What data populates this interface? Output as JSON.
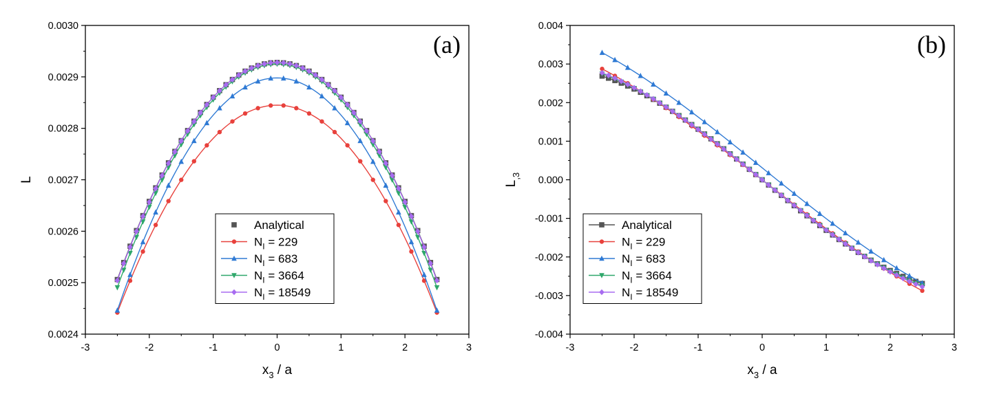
{
  "chart_data": [
    {
      "type": "line",
      "panel_label": "(a)",
      "xlabel": "x",
      "xlabel_sub": "3",
      "xlabel_suffix": " / a",
      "ylabel": "L",
      "ylabel_sub": "",
      "xlim": [
        -3,
        3
      ],
      "ylim": [
        0.0024,
        0.003
      ],
      "xticks": [
        "-3",
        "-2",
        "-1",
        "0",
        "1",
        "2",
        "3"
      ],
      "yticks": [
        "0.0024",
        "0.0025",
        "0.0026",
        "0.0027",
        "0.0028",
        "0.0029",
        "0.0030"
      ],
      "legend_position": "bottom-center",
      "series": [
        {
          "name": "Analytical",
          "kind": "analytical",
          "color": "#555555",
          "marker": "square",
          "curve": {
            "type": "quadratic",
            "a": 0.002928,
            "b": 0.0,
            "c": -6.75e-05
          },
          "x_start": -2.5,
          "x_end": 2.5,
          "step": 0.1
        },
        {
          "name": "229",
          "kind": "numeric",
          "color": "#e8413c",
          "marker": "circle",
          "curve": {
            "type": "quadratic",
            "a": 0.002845,
            "b": 0.0,
            "c": -6.45e-05
          },
          "x_start": -2.5,
          "x_end": 2.5,
          "step": 0.2
        },
        {
          "name": "683",
          "kind": "numeric",
          "color": "#2f7ad4",
          "marker": "triangle-up",
          "curve": {
            "type": "quadratic",
            "a": 0.002898,
            "b": 0.0,
            "c": -7.23e-05
          },
          "x_start": -2.5,
          "x_end": 2.5,
          "step": 0.2
        },
        {
          "name": "3664",
          "kind": "numeric",
          "color": "#2ea76a",
          "marker": "triangle-down",
          "curve": {
            "type": "quadratic",
            "a": 0.002925,
            "b": 0.0,
            "c": -6.95e-05
          },
          "x_start": -2.5,
          "x_end": 2.5,
          "step": 0.1
        },
        {
          "name": "18549",
          "kind": "numeric",
          "color": "#a86cf0",
          "marker": "diamond",
          "curve": {
            "type": "quadratic",
            "a": 0.002928,
            "b": 0.0,
            "c": -6.78e-05
          },
          "x_start": -2.5,
          "x_end": 2.5,
          "step": 0.1
        }
      ]
    },
    {
      "type": "line",
      "panel_label": "(b)",
      "xlabel": "x",
      "xlabel_sub": "3",
      "xlabel_suffix": " / a",
      "ylabel": "L",
      "ylabel_sub": ",3",
      "xlim": [
        -3,
        3
      ],
      "ylim": [
        -0.004,
        0.004
      ],
      "xticks": [
        "-3",
        "-2",
        "-1",
        "0",
        "1",
        "2",
        "3"
      ],
      "yticks": [
        "-0.004",
        "-0.003",
        "-0.002",
        "-0.001",
        "0.000",
        "0.001",
        "0.002",
        "0.003",
        "0.004"
      ],
      "legend_position": "bottom-left",
      "series": [
        {
          "name": "Analytical",
          "kind": "analytical",
          "color": "#555555",
          "marker": "square",
          "curve": {
            "type": "cubic",
            "a": 0.0,
            "b": -0.001355,
            "d": 4.48e-05
          },
          "x_start": -2.5,
          "x_end": 2.5,
          "step": 0.1
        },
        {
          "name": "229",
          "kind": "numeric",
          "color": "#e8413c",
          "marker": "circle",
          "curve": {
            "type": "cubic",
            "a": 0.0,
            "b": -0.00129,
            "d": 2.24e-05
          },
          "x_start": -2.5,
          "x_end": 2.5,
          "step": 0.2
        },
        {
          "name": "683",
          "kind": "numeric",
          "color": "#2f7ad4",
          "marker": "triangle-up",
          "curve": {
            "type": "cubic",
            "a": 0.00031,
            "b": -0.00134,
            "d": 2.33e-05
          },
          "x_start": -2.5,
          "x_end": 2.5,
          "step": 0.2
        },
        {
          "name": "3664",
          "kind": "numeric",
          "color": "#2ea76a",
          "marker": "triangle-down",
          "curve": {
            "type": "cubic",
            "a": 0.0,
            "b": -0.00134,
            "d": 3.84e-05
          },
          "x_start": -2.5,
          "x_end": 2.5,
          "step": 0.1
        },
        {
          "name": "18549",
          "kind": "numeric",
          "color": "#a86cf0",
          "marker": "diamond",
          "curve": {
            "type": "cubic",
            "a": 0.0,
            "b": -0.00134,
            "d": 3.7e-05
          },
          "x_start": -2.5,
          "x_end": 2.5,
          "step": 0.1
        }
      ]
    }
  ],
  "legend": {
    "numeric_prefix": "N",
    "numeric_sub": "I",
    "numeric_eq": " = "
  }
}
